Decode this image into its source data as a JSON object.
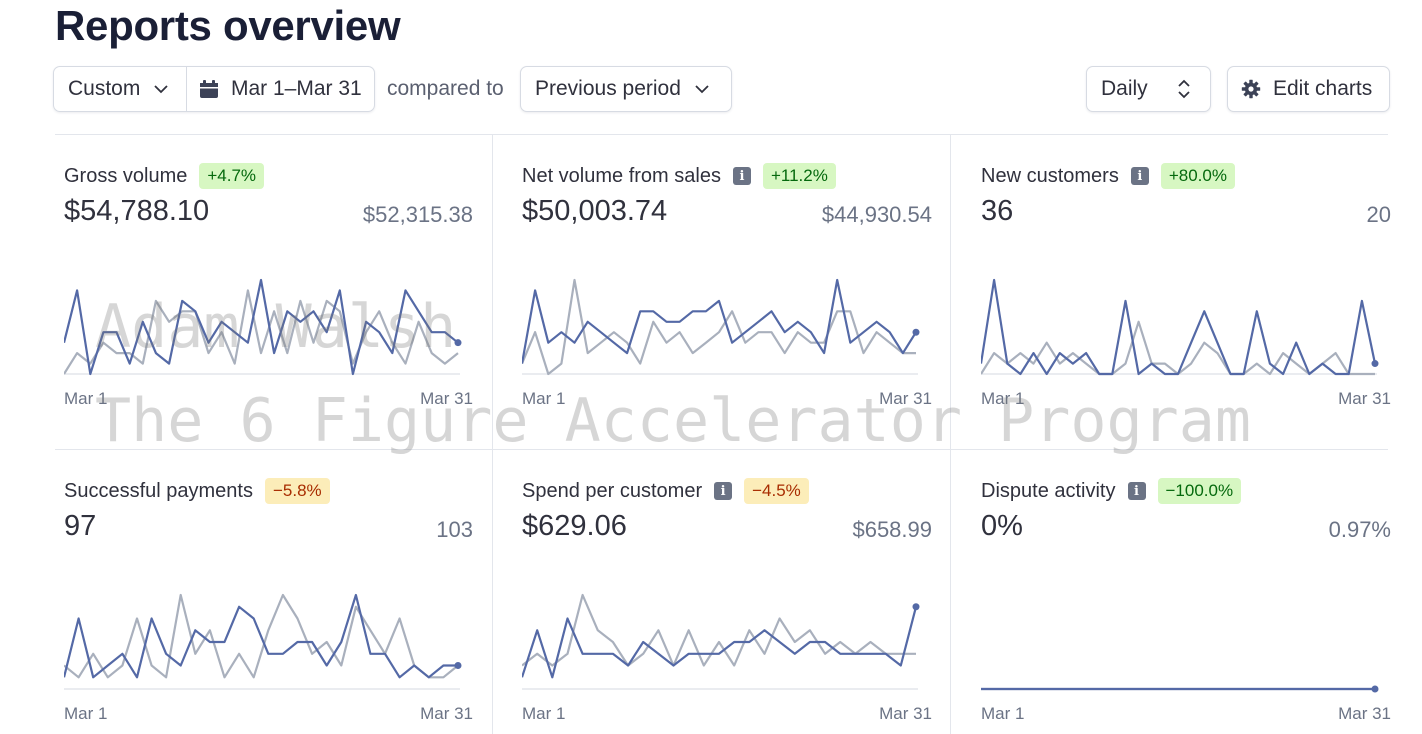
{
  "header": {
    "title": "Reports overview"
  },
  "toolbar": {
    "range_preset": "Custom",
    "date_range": "Mar 1–Mar 31",
    "compared_to_label": "compared to",
    "comparison": "Previous period",
    "interval": "Daily",
    "edit_charts": "Edit charts"
  },
  "colors": {
    "current": "#5469a6",
    "previous": "#a9b0bd",
    "positive_bg": "#d7f7c2",
    "negative_bg": "#fcedb9"
  },
  "watermark": {
    "line1": "Adam Walsh",
    "line2": "The 6 Figure Accelerator Program"
  },
  "cards": [
    {
      "title": "Gross volume",
      "info": false,
      "change": "+4.7%",
      "trend": "pos",
      "value": "$54,788.10",
      "previous": "$52,315.38",
      "x_start": "Mar 1",
      "x_end": "Mar 31"
    },
    {
      "title": "Net volume from sales",
      "info": true,
      "change": "+11.2%",
      "trend": "pos",
      "value": "$50,003.74",
      "previous": "$44,930.54",
      "x_start": "Mar 1",
      "x_end": "Mar 31"
    },
    {
      "title": "New customers",
      "info": true,
      "change": "+80.0%",
      "trend": "pos",
      "value": "36",
      "previous": "20",
      "x_start": "Mar 1",
      "x_end": "Mar 31"
    },
    {
      "title": "Successful payments",
      "info": false,
      "change": "−5.8%",
      "trend": "neg",
      "value": "97",
      "previous": "103",
      "x_start": "Mar 1",
      "x_end": "Mar 31"
    },
    {
      "title": "Spend per customer",
      "info": true,
      "change": "−4.5%",
      "trend": "neg",
      "value": "$629.06",
      "previous": "$658.99",
      "x_start": "Mar 1",
      "x_end": "Mar 31"
    },
    {
      "title": "Dispute activity",
      "info": true,
      "change": "−100.0%",
      "trend": "pos",
      "value": "0%",
      "previous": "0.97%",
      "x_start": "Mar 1",
      "x_end": "Mar 31"
    }
  ],
  "chart_data": [
    {
      "type": "line",
      "series": [
        {
          "values": [
            3,
            8,
            0,
            4,
            4,
            1,
            5,
            2,
            1,
            7,
            6,
            3,
            5,
            4,
            3,
            9,
            2,
            6,
            5,
            6,
            4,
            8,
            0,
            5,
            4,
            2,
            8,
            6,
            4,
            4,
            3
          ]
        },
        {
          "values": [
            0,
            2,
            1,
            3,
            2,
            2,
            1,
            7,
            5,
            6,
            6,
            2,
            4,
            1,
            8,
            2,
            6,
            2,
            7,
            3,
            7,
            6,
            1,
            4,
            6,
            3,
            1,
            5,
            2,
            1,
            2
          ]
        }
      ]
    },
    {
      "type": "line",
      "series": [
        {
          "values": [
            1,
            8,
            3,
            4,
            3,
            5,
            4,
            3,
            2,
            6,
            6,
            5,
            5,
            6,
            6,
            7,
            3,
            4,
            5,
            6,
            4,
            5,
            4,
            2,
            9,
            3,
            4,
            5,
            4,
            2,
            4
          ]
        },
        {
          "values": [
            1,
            4,
            0,
            1,
            9,
            2,
            3,
            4,
            3,
            1,
            5,
            3,
            4,
            2,
            3,
            4,
            6,
            3,
            4,
            4,
            2,
            4,
            3,
            3,
            6,
            6,
            2,
            4,
            3,
            2,
            2
          ]
        }
      ]
    },
    {
      "type": "line",
      "series": [
        {
          "values": [
            1,
            9,
            1,
            0,
            2,
            0,
            2,
            1,
            2,
            0,
            0,
            7,
            0,
            1,
            0,
            0,
            3,
            6,
            3,
            0,
            0,
            6,
            1,
            0,
            3,
            0,
            1,
            0,
            0,
            7,
            1
          ]
        },
        {
          "values": [
            0,
            2,
            1,
            2,
            1,
            3,
            1,
            2,
            1,
            0,
            0,
            1,
            5,
            1,
            1,
            0,
            1,
            3,
            2,
            0,
            0,
            1,
            0,
            2,
            1,
            0,
            1,
            2,
            0,
            0,
            0
          ]
        }
      ]
    },
    {
      "type": "line",
      "series": [
        {
          "values": [
            1,
            6,
            1,
            2,
            3,
            1,
            6,
            3,
            2,
            5,
            4,
            4,
            7,
            6,
            3,
            3,
            4,
            4,
            2,
            4,
            8,
            3,
            3,
            1,
            2,
            1,
            2,
            2
          ]
        },
        {
          "values": [
            2,
            1,
            3,
            1,
            2,
            6,
            2,
            1,
            8,
            3,
            5,
            1,
            3,
            1,
            5,
            8,
            6,
            3,
            4,
            2,
            7,
            5,
            3,
            6,
            2,
            1,
            1,
            2
          ]
        }
      ]
    },
    {
      "type": "line",
      "series": [
        {
          "values": [
            1,
            5,
            1,
            6,
            3,
            3,
            3,
            2,
            4,
            3,
            2,
            3,
            3,
            3,
            4,
            4,
            5,
            4,
            3,
            4,
            4,
            3,
            3,
            3,
            3,
            2,
            7
          ]
        },
        {
          "values": [
            2,
            3,
            2,
            3,
            8,
            5,
            4,
            2,
            3,
            5,
            2,
            5,
            2,
            4,
            2,
            5,
            3,
            6,
            4,
            5,
            3,
            4,
            3,
            4,
            3,
            3,
            3
          ]
        }
      ]
    },
    {
      "type": "line",
      "series": [
        {
          "values": [
            0,
            0,
            0,
            0,
            0,
            0,
            0,
            0,
            0,
            0,
            0,
            0,
            0,
            0,
            0,
            0,
            0,
            0,
            0,
            0,
            0,
            0,
            0,
            0,
            0,
            0,
            0,
            0,
            0,
            0,
            0
          ]
        },
        {
          "values": [
            0,
            0,
            0,
            0,
            0,
            0,
            0,
            0,
            0,
            0,
            0,
            0,
            0,
            0,
            0,
            0,
            0,
            0,
            0,
            0,
            0,
            0,
            0,
            0,
            0,
            0,
            0,
            0,
            0,
            0,
            0
          ]
        }
      ]
    }
  ]
}
